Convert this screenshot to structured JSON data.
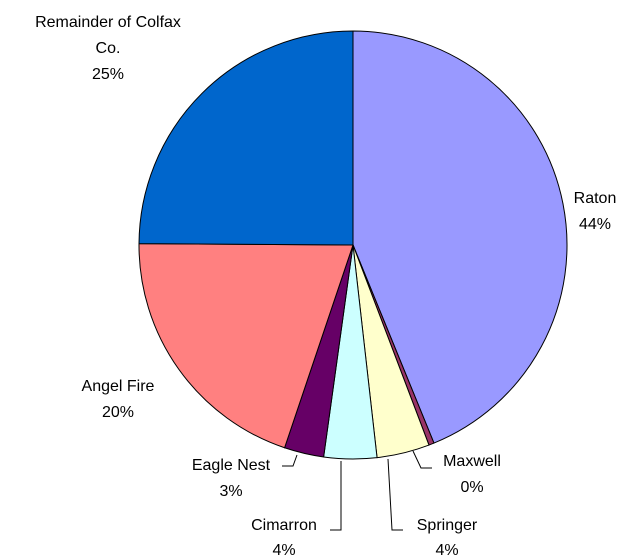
{
  "chart_data": {
    "type": "pie",
    "title": "",
    "start": "12 o'clock",
    "direction": "clockwise",
    "border_color": "#000000",
    "slices": [
      {
        "label": "Raton",
        "value": 44,
        "value_label": "44%",
        "color": "#9999FF"
      },
      {
        "label": "Maxwell",
        "value": 0.4,
        "value_label": "0%",
        "color": "#993366"
      },
      {
        "label": "Springer",
        "value": 4,
        "value_label": "4%",
        "color": "#FFFFCC"
      },
      {
        "label": "Cimarron",
        "value": 4,
        "value_label": "4%",
        "color": "#CCFFFF"
      },
      {
        "label": "Eagle Nest",
        "value": 3,
        "value_label": "3%",
        "color": "#660066"
      },
      {
        "label": "Angel Fire",
        "value": 20,
        "value_label": "20%",
        "color": "#FF8080"
      },
      {
        "label": "Remainder of Colfax Co.",
        "value": 25,
        "value_label": "25%",
        "color": "#0066CC"
      }
    ]
  }
}
